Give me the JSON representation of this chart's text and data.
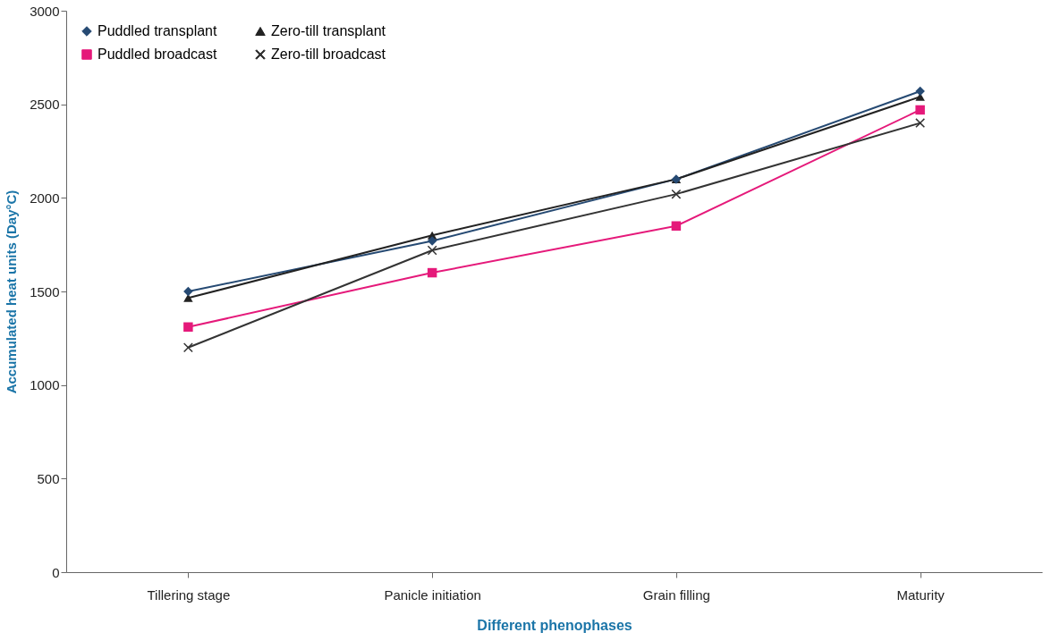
{
  "chart_data": {
    "type": "line",
    "xlabel": "Different phenophases",
    "ylabel": "Accumulated heat units (Day°C)",
    "categories": [
      "Tillering stage",
      "Panicle initiation",
      "Grain filling",
      "Maturity"
    ],
    "ylim": [
      0,
      3000
    ],
    "yticks": [
      0,
      500,
      1000,
      1500,
      2000,
      2500,
      3000
    ],
    "grid": false,
    "legend": "top left",
    "line_style": "solid",
    "series": [
      {
        "name": "Puddled transplant",
        "color": "#264a73",
        "marker": "diamond",
        "values": [
          1500,
          1770,
          2100,
          2570
        ]
      },
      {
        "name": "Puddled broadcast",
        "color": "#e5197a",
        "marker": "square",
        "values": [
          1310,
          1600,
          1850,
          2470
        ]
      },
      {
        "name": "Zero-till transplant",
        "color": "#222222",
        "marker": "triangle",
        "values": [
          1465,
          1800,
          2100,
          2540
        ]
      },
      {
        "name": "Zero-till broadcast",
        "color": "#333333",
        "marker": "cross",
        "values": [
          1200,
          1720,
          2020,
          2400
        ]
      }
    ]
  }
}
